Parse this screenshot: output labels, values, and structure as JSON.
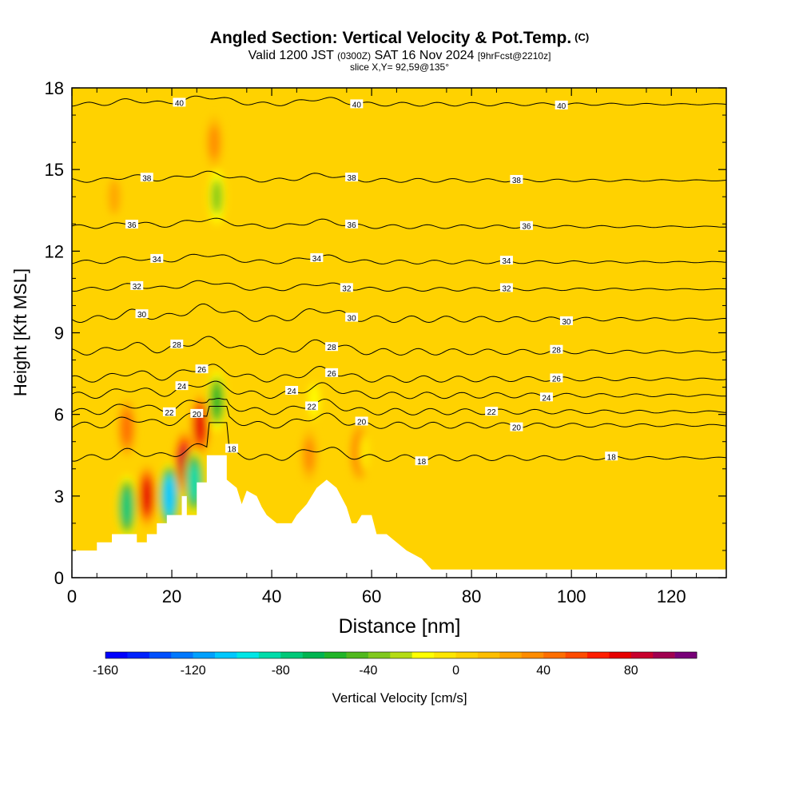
{
  "header": {
    "title": "Angled Section: Vertical Velocity & Pot.Temp.",
    "title_mark": "(C)",
    "valid_prefix": "Valid 1200 JST",
    "valid_utc": "(0300Z)",
    "valid_date": "SAT 16 Nov 2024",
    "forecast": "[9hrFcst@2210z]",
    "slice": "slice X,Y= 92,59@135°"
  },
  "chart_data": {
    "type": "heatmap",
    "title": "Angled Section: Vertical Velocity & Pot.Temp.",
    "xlabel": "Distance [nm]",
    "ylabel": "Height [Kft MSL]",
    "xlim": [
      0,
      131
    ],
    "ylim": [
      0,
      18
    ],
    "x_ticks": [
      0,
      20,
      40,
      60,
      80,
      100,
      120
    ],
    "y_ticks": [
      0,
      3,
      6,
      9,
      12,
      15,
      18
    ],
    "colorbar": {
      "label": "Vertical Velocity [cm/s]",
      "min": -160,
      "max": 110,
      "step": 10,
      "ticks": [
        -160,
        -120,
        -80,
        -40,
        0,
        40,
        80
      ],
      "colors": [
        "#0000ff",
        "#0022ff",
        "#0050ff",
        "#0078ff",
        "#00a0ff",
        "#00c8ff",
        "#00e6e6",
        "#00dcaa",
        "#00c878",
        "#00b450",
        "#20b428",
        "#50b81e",
        "#80c81e",
        "#b4dc14",
        "#ffff00",
        "#ffe600",
        "#ffd200",
        "#ffbe00",
        "#ffa500",
        "#ff8c00",
        "#ff6e00",
        "#ff4b00",
        "#ff1e00",
        "#e60000",
        "#c8002d",
        "#a00050",
        "#780078"
      ]
    },
    "background_velocity": 0,
    "updrafts": [
      {
        "x": 11,
        "y": 5.5,
        "value": 40
      },
      {
        "x": 15,
        "y": 3,
        "value": 70
      },
      {
        "x": 22.5,
        "y": 4.2,
        "value": 80
      },
      {
        "x": 25.7,
        "y": 5.6,
        "value": 70
      },
      {
        "x": 28.5,
        "y": 16,
        "value": 30
      },
      {
        "x": 8.5,
        "y": 14,
        "value": 20
      },
      {
        "x": 47.5,
        "y": 4.5,
        "value": 30
      },
      {
        "x": 57.5,
        "y": 4.6,
        "value": 40
      }
    ],
    "downdrafts": [
      {
        "x": 11,
        "y": 2.6,
        "value": -80
      },
      {
        "x": 19.5,
        "y": 3,
        "value": -110
      },
      {
        "x": 24.5,
        "y": 3.5,
        "value": -90
      },
      {
        "x": 29,
        "y": 6.5,
        "value": -60
      },
      {
        "x": 29,
        "y": 14,
        "value": -40
      },
      {
        "x": 48.5,
        "y": 6.5,
        "value": -20
      },
      {
        "x": 58.5,
        "y": 4.6,
        "value": -10
      }
    ],
    "terrain_profile": [
      [
        0,
        1.0
      ],
      [
        5,
        1.0
      ],
      [
        5,
        1.3
      ],
      [
        8,
        1.3
      ],
      [
        8,
        1.6
      ],
      [
        13,
        1.6
      ],
      [
        13,
        1.3
      ],
      [
        15,
        1.3
      ],
      [
        15,
        1.6
      ],
      [
        17,
        1.6
      ],
      [
        17,
        2.0
      ],
      [
        19,
        2.0
      ],
      [
        19,
        2.3
      ],
      [
        22,
        2.3
      ],
      [
        22,
        3.0
      ],
      [
        23,
        3.0
      ],
      [
        23,
        2.3
      ],
      [
        25,
        2.3
      ],
      [
        25,
        3.5
      ],
      [
        27,
        3.5
      ],
      [
        27,
        4.5
      ],
      [
        31,
        4.5
      ],
      [
        31,
        3.6
      ],
      [
        33,
        3.3
      ],
      [
        34,
        2.7
      ],
      [
        35,
        3.2
      ],
      [
        37,
        3.0
      ],
      [
        38,
        2.6
      ],
      [
        39,
        2.3
      ],
      [
        41,
        2.0
      ],
      [
        44,
        2.0
      ],
      [
        45,
        2.3
      ],
      [
        47,
        2.7
      ],
      [
        49,
        3.3
      ],
      [
        51,
        3.6
      ],
      [
        53,
        3.3
      ],
      [
        55,
        2.6
      ],
      [
        56,
        2.0
      ],
      [
        57,
        2.0
      ],
      [
        58,
        2.3
      ],
      [
        60,
        2.3
      ],
      [
        61,
        1.6
      ],
      [
        63,
        1.6
      ],
      [
        65,
        1.3
      ],
      [
        67,
        1.0
      ],
      [
        70,
        0.7
      ],
      [
        72,
        0.3
      ],
      [
        131,
        0.3
      ]
    ],
    "isentropes": [
      {
        "theta": 40,
        "y": 17.4,
        "labels": [
          {
            "x": 21.5,
            "text": "40"
          },
          {
            "x": 57,
            "text": "40"
          },
          {
            "x": 98,
            "text": "40"
          }
        ]
      },
      {
        "theta": 38,
        "y": 14.6,
        "labels": [
          {
            "x": 15,
            "text": "38"
          },
          {
            "x": 56,
            "text": "38"
          },
          {
            "x": 89,
            "text": "38"
          }
        ]
      },
      {
        "theta": 36,
        "y": 12.9,
        "labels": [
          {
            "x": 12,
            "text": "36"
          },
          {
            "x": 56,
            "text": "36"
          },
          {
            "x": 91,
            "text": "36"
          }
        ]
      },
      {
        "theta": 34,
        "y": 11.6,
        "labels": [
          {
            "x": 17,
            "text": "34"
          },
          {
            "x": 49,
            "text": "34"
          },
          {
            "x": 87,
            "text": "34"
          }
        ]
      },
      {
        "theta": 32,
        "y": 10.6,
        "labels": [
          {
            "x": 13,
            "text": "32"
          },
          {
            "x": 55,
            "text": "32"
          },
          {
            "x": 87,
            "text": "32"
          }
        ]
      },
      {
        "theta": 30,
        "y": 9.5,
        "labels": [
          {
            "x": 14,
            "text": "30"
          },
          {
            "x": 56,
            "text": "30"
          },
          {
            "x": 99,
            "text": "30"
          }
        ]
      },
      {
        "theta": 28,
        "y": 8.3,
        "labels": [
          {
            "x": 21,
            "text": "28"
          },
          {
            "x": 52,
            "text": "28"
          },
          {
            "x": 97,
            "text": "28"
          }
        ]
      },
      {
        "theta": 26,
        "y": 7.3,
        "labels": [
          {
            "x": 26,
            "text": "26"
          },
          {
            "x": 52,
            "text": "26"
          },
          {
            "x": 97,
            "text": "26"
          }
        ]
      },
      {
        "theta": 24,
        "y": 6.7,
        "labels": [
          {
            "x": 22,
            "text": "24"
          },
          {
            "x": 44,
            "text": "24"
          },
          {
            "x": 95,
            "text": "24"
          }
        ]
      },
      {
        "theta": 22,
        "y": 6.1,
        "labels": [
          {
            "x": 19.5,
            "text": "22"
          },
          {
            "x": 48,
            "text": "22"
          },
          {
            "x": 84,
            "text": "22"
          }
        ]
      },
      {
        "theta": 20,
        "y": 5.6,
        "labels": [
          {
            "x": 25,
            "text": "20"
          },
          {
            "x": 58,
            "text": "20"
          },
          {
            "x": 89,
            "text": "20"
          }
        ]
      },
      {
        "theta": 18,
        "y": 4.4,
        "labels": [
          {
            "x": 32,
            "text": "18"
          },
          {
            "x": 70,
            "text": "18"
          },
          {
            "x": 108,
            "text": "18"
          }
        ]
      }
    ]
  }
}
